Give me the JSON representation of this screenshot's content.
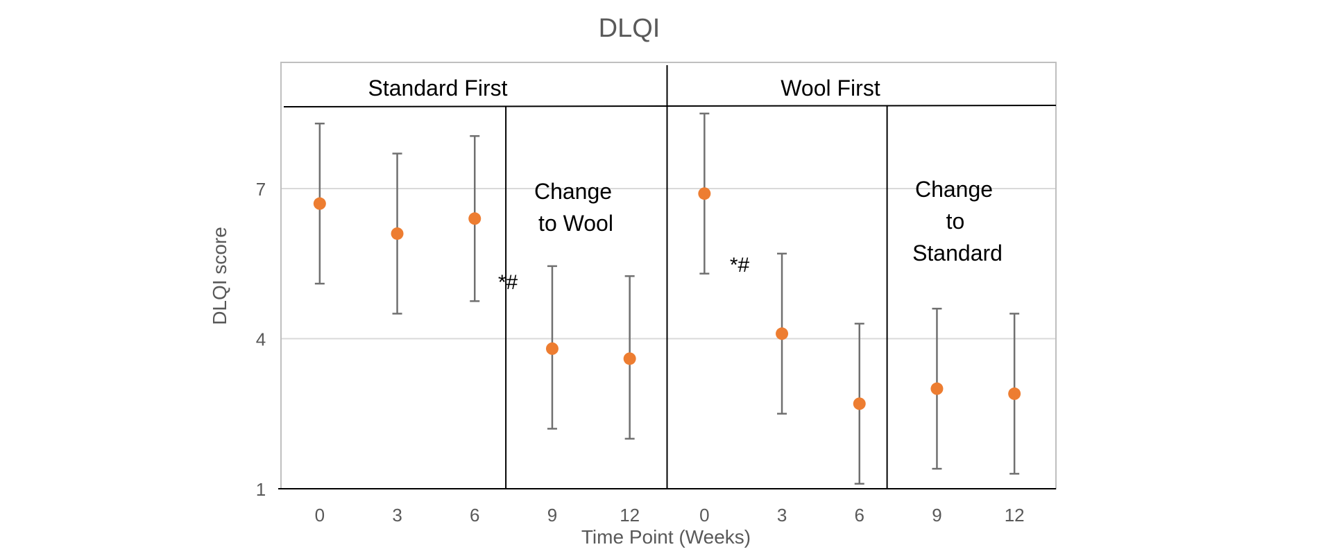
{
  "chart_data": {
    "type": "scatter",
    "title": "DLQI",
    "xlabel": "Time Point (Weeks)",
    "ylabel": "DLQI score",
    "ylim": [
      1,
      9.5
    ],
    "yticks": [
      1,
      4,
      7
    ],
    "grid": true,
    "groups": [
      {
        "label": "Standard First",
        "phase_label": [
          "Change",
          "to Wool"
        ],
        "significance_label": "*#"
      },
      {
        "label": "Wool First",
        "phase_label": [
          "Change",
          "to",
          "Standard"
        ],
        "significance_label": "*#"
      }
    ],
    "categories": [
      "0",
      "3",
      "6",
      "9",
      "12",
      "0",
      "3",
      "6",
      "9",
      "12"
    ],
    "points": [
      {
        "group": "Standard First",
        "week": "0",
        "mean": 6.7,
        "lower": 5.1,
        "upper": 8.3
      },
      {
        "group": "Standard First",
        "week": "3",
        "mean": 6.1,
        "lower": 4.5,
        "upper": 7.7
      },
      {
        "group": "Standard First",
        "week": "6",
        "mean": 6.4,
        "lower": 4.75,
        "upper": 8.05
      },
      {
        "group": "Standard First",
        "week": "9",
        "mean": 3.8,
        "lower": 2.2,
        "upper": 5.45
      },
      {
        "group": "Standard First",
        "week": "12",
        "mean": 3.6,
        "lower": 2.0,
        "upper": 5.25
      },
      {
        "group": "Wool First",
        "week": "0",
        "mean": 6.9,
        "lower": 5.3,
        "upper": 8.5
      },
      {
        "group": "Wool First",
        "week": "3",
        "mean": 4.1,
        "lower": 2.5,
        "upper": 5.7
      },
      {
        "group": "Wool First",
        "week": "6",
        "mean": 2.7,
        "lower": 1.1,
        "upper": 4.3
      },
      {
        "group": "Wool First",
        "week": "9",
        "mean": 3.0,
        "lower": 1.4,
        "upper": 4.6
      },
      {
        "group": "Wool First",
        "week": "12",
        "mean": 2.9,
        "lower": 1.3,
        "upper": 4.5
      }
    ],
    "colors": {
      "marker": "#ED7D31",
      "error_bar": "#707070",
      "grid": "#D9D9D9",
      "frame": "#000000",
      "text": "#595959"
    }
  }
}
